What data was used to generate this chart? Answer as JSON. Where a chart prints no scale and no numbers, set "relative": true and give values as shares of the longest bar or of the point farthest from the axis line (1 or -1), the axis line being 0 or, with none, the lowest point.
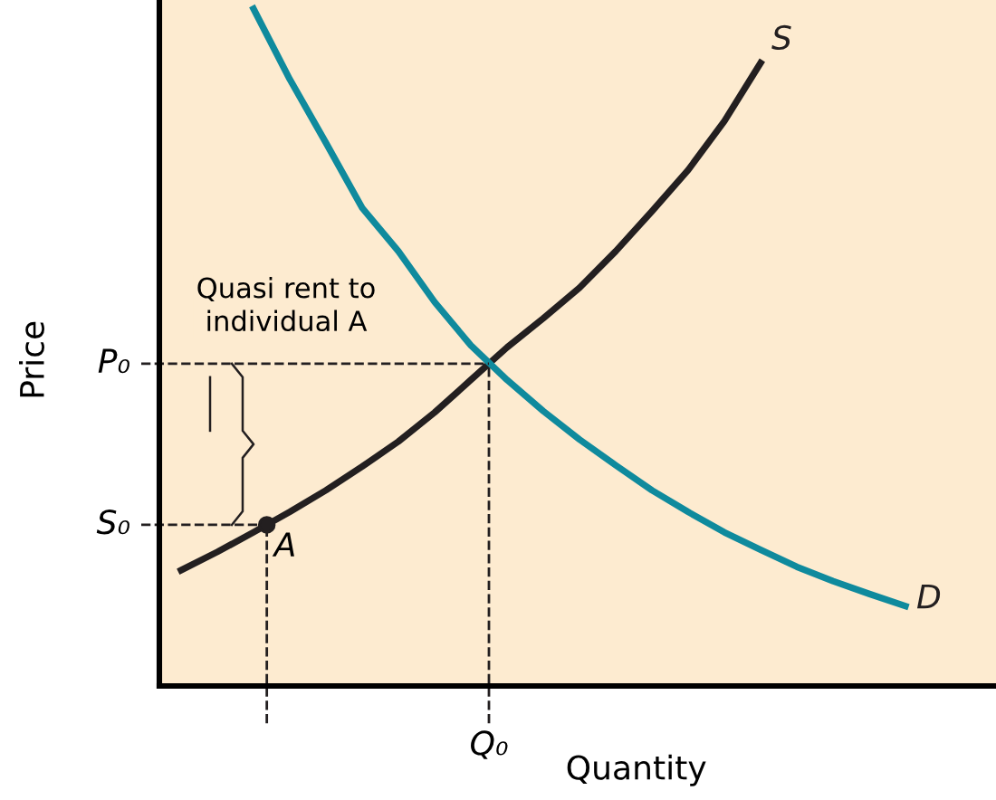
{
  "chart_data": {
    "type": "line",
    "relative": true,
    "xlabel": "Quantity",
    "ylabel": "Price",
    "categories": [
      null,
      null,
      null,
      null,
      null,
      null,
      null,
      null,
      null,
      null,
      null,
      null,
      null,
      null,
      null,
      null,
      null,
      null,
      null,
      null,
      null
    ],
    "series": [
      {
        "name": "S",
        "color": "#231f20",
        "values": [
          0.171,
          0.198,
          0.227,
          0.257,
          0.289,
          0.324,
          0.361,
          0.404,
          0.452,
          0.5,
          0.543,
          0.588,
          0.642,
          0.701,
          0.762,
          0.834,
          0.92,
          null,
          null,
          null,
          null
        ]
      },
      {
        "name": "D",
        "color": "#0f8a9d",
        "values": [
          null,
          null,
          1.0,
          0.896,
          0.802,
          0.706,
          0.642,
          0.567,
          0.503,
          0.452,
          0.406,
          0.364,
          0.326,
          0.289,
          0.257,
          0.227,
          0.201,
          0.176,
          0.155,
          0.136,
          0.118
        ]
      }
    ],
    "ref_lines": [
      {
        "axis": "y",
        "value": 0.476,
        "label": "P₀",
        "line_style": "dashed"
      },
      {
        "axis": "y",
        "value": 0.238,
        "label": "S₀",
        "line_style": "dashed"
      }
    ],
    "annotations": [
      "Quasi rent to\nindividual A",
      "A",
      "Q₀"
    ],
    "legend": false,
    "line_style": "solid",
    "marker": "none"
  }
}
